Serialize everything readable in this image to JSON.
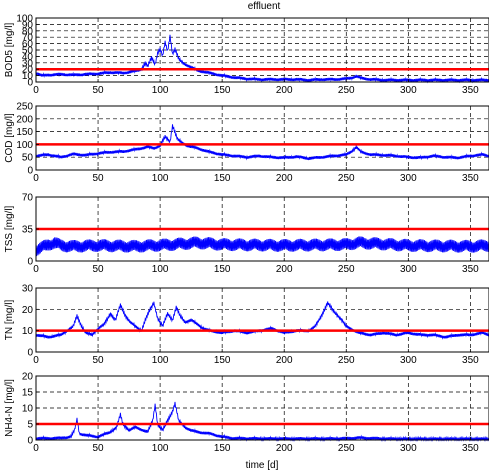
{
  "figure_title": "effluent",
  "xlabel": "time [d]",
  "chart_data": [
    {
      "type": "line",
      "ylabel": "BOD5 [mg/l]",
      "xlim": [
        0,
        365
      ],
      "ylim": [
        0,
        100
      ],
      "xticks": [
        0,
        50,
        100,
        150,
        200,
        250,
        300,
        350
      ],
      "yticks": [
        0,
        10,
        20,
        30,
        40,
        50,
        60,
        70,
        80,
        90,
        100
      ],
      "grid": true,
      "threshold": 20,
      "series_color": "#0000ff",
      "threshold_color": "#ff0000",
      "series": [
        {
          "x": [
            0,
            5,
            10,
            20,
            30,
            40,
            50,
            60,
            70,
            80,
            85,
            88,
            90,
            93,
            96,
            98,
            100,
            102,
            104,
            106,
            108,
            110,
            112,
            115,
            118,
            122,
            126,
            130,
            140,
            150,
            160,
            170,
            180,
            190,
            200,
            210,
            220,
            230,
            240,
            250,
            255,
            258,
            262,
            270,
            280,
            290,
            300,
            310,
            320,
            330,
            340,
            350,
            360,
            365
          ],
          "y": [
            14,
            10,
            11,
            12,
            11,
            12,
            13,
            15,
            14,
            17,
            20,
            30,
            24,
            38,
            28,
            45,
            52,
            40,
            62,
            48,
            72,
            44,
            52,
            36,
            30,
            26,
            22,
            18,
            14,
            10,
            7,
            5,
            4,
            4,
            4,
            4,
            3,
            4,
            4,
            5,
            7,
            9,
            6,
            4,
            3,
            3,
            3,
            3,
            3,
            3,
            3,
            3,
            3,
            3
          ]
        }
      ]
    },
    {
      "type": "line",
      "ylabel": "COD [mg/l]",
      "xlim": [
        0,
        365
      ],
      "ylim": [
        0,
        250
      ],
      "xticks": [
        0,
        50,
        100,
        150,
        200,
        250,
        300,
        350
      ],
      "yticks": [
        0,
        50,
        100,
        150,
        200,
        250
      ],
      "grid": true,
      "threshold": 100,
      "series_color": "#0000ff",
      "threshold_color": "#ff0000",
      "series": [
        {
          "x": [
            0,
            10,
            20,
            30,
            40,
            50,
            60,
            70,
            80,
            90,
            95,
            100,
            104,
            108,
            110,
            114,
            118,
            122,
            130,
            140,
            150,
            160,
            170,
            180,
            190,
            200,
            210,
            220,
            230,
            240,
            250,
            255,
            258,
            262,
            270,
            280,
            290,
            300,
            310,
            320,
            330,
            340,
            350,
            360,
            365
          ],
          "y": [
            55,
            60,
            50,
            62,
            58,
            65,
            70,
            72,
            80,
            90,
            85,
            95,
            130,
            110,
            175,
            120,
            105,
            95,
            85,
            70,
            60,
            55,
            50,
            55,
            50,
            48,
            52,
            45,
            50,
            55,
            60,
            75,
            90,
            70,
            60,
            58,
            55,
            50,
            48,
            55,
            50,
            48,
            55,
            60,
            55
          ]
        }
      ]
    },
    {
      "type": "line",
      "ylabel": "TSS [mg/l]",
      "xlim": [
        0,
        365
      ],
      "ylim": [
        0,
        70
      ],
      "xticks": [
        0,
        50,
        100,
        150,
        200,
        250,
        300,
        350
      ],
      "yticks": [
        0,
        35,
        70
      ],
      "grid": true,
      "threshold": 35,
      "series_color": "#0000ff",
      "threshold_color": "#ff0000",
      "series": [
        {
          "x": [
            0,
            5,
            10,
            15,
            20,
            30,
            50,
            80,
            110,
            130,
            150,
            200,
            250,
            260,
            300,
            350,
            365
          ],
          "y": [
            12,
            15,
            18,
            20,
            17,
            16,
            17,
            16,
            18,
            20,
            18,
            17,
            18,
            20,
            17,
            16,
            17
          ]
        }
      ]
    },
    {
      "type": "line",
      "ylabel": "TN [mg/l]",
      "xlim": [
        0,
        365
      ],
      "ylim": [
        0,
        30
      ],
      "xticks": [
        0,
        50,
        100,
        150,
        200,
        250,
        300,
        350
      ],
      "yticks": [
        0,
        10,
        20,
        30
      ],
      "grid": true,
      "threshold": 10,
      "series_color": "#0000ff",
      "threshold_color": "#ff0000",
      "series": [
        {
          "x": [
            0,
            10,
            20,
            25,
            30,
            33,
            36,
            40,
            45,
            50,
            55,
            60,
            64,
            68,
            72,
            76,
            80,
            85,
            88,
            92,
            95,
            98,
            102,
            106,
            110,
            113,
            116,
            120,
            125,
            130,
            135,
            140,
            150,
            160,
            170,
            180,
            190,
            200,
            210,
            220,
            225,
            230,
            235,
            240,
            245,
            250,
            260,
            270,
            280,
            290,
            300,
            310,
            320,
            330,
            340,
            350,
            360,
            365
          ],
          "y": [
            8,
            7,
            8,
            10,
            12,
            17,
            13,
            9,
            8,
            11,
            13,
            18,
            15,
            22,
            17,
            14,
            12,
            10,
            15,
            20,
            23,
            16,
            12,
            18,
            15,
            21,
            17,
            14,
            15,
            13,
            11,
            10,
            9,
            10,
            9,
            10,
            11,
            9,
            10,
            10,
            12,
            17,
            23,
            19,
            16,
            12,
            9,
            8,
            9,
            8,
            9,
            8,
            8,
            7,
            8,
            8,
            9,
            8
          ]
        }
      ]
    },
    {
      "type": "line",
      "ylabel": "NH4-N [mg/l]",
      "xlim": [
        0,
        365
      ],
      "ylim": [
        0,
        20
      ],
      "xticks": [
        0,
        50,
        100,
        150,
        200,
        250,
        300,
        350
      ],
      "yticks": [
        0,
        5,
        10,
        15,
        20
      ],
      "grid": true,
      "threshold": 5,
      "series_color": "#0000ff",
      "threshold_color": "#ff0000",
      "series": [
        {
          "x": [
            0,
            10,
            20,
            28,
            31,
            33,
            35,
            40,
            50,
            60,
            65,
            68,
            70,
            75,
            80,
            90,
            94,
            96,
            98,
            102,
            106,
            110,
            112,
            115,
            120,
            125,
            130,
            140,
            150,
            160,
            170,
            180,
            200,
            220,
            240,
            250,
            260,
            280,
            300,
            320,
            340,
            360,
            365
          ],
          "y": [
            0.5,
            0.5,
            0.6,
            1,
            3,
            6.5,
            2,
            1.5,
            1,
            2.5,
            4,
            8,
            5,
            3,
            4,
            2.5,
            6,
            11,
            5,
            3,
            6,
            9,
            11.5,
            6,
            4,
            3,
            2.5,
            2,
            1,
            0.5,
            0.5,
            0.4,
            0.4,
            0.4,
            0.4,
            0.5,
            0.7,
            0.4,
            0.3,
            0.3,
            0.3,
            0.3,
            0.3
          ]
        }
      ]
    }
  ]
}
